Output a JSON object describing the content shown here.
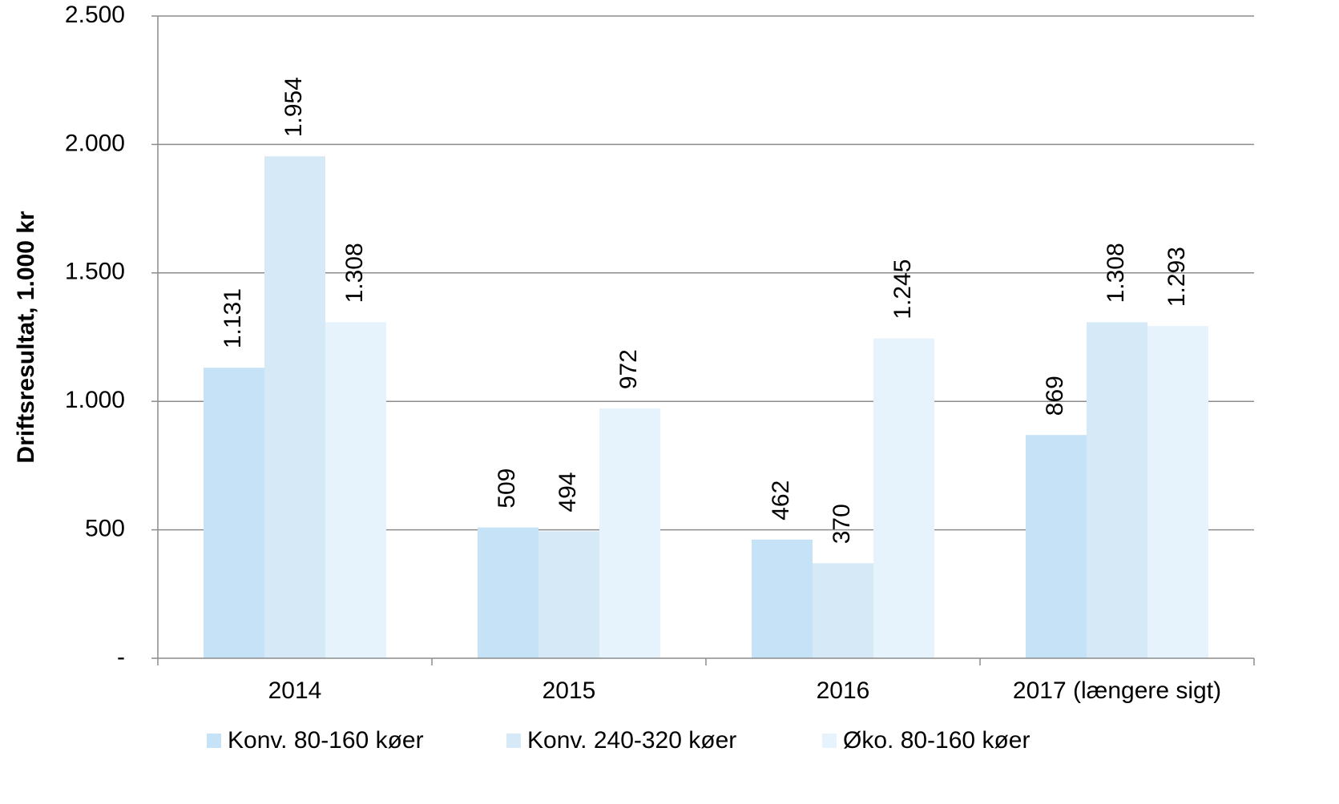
{
  "chart_data": {
    "type": "bar",
    "y_label": "Driftsresultat, 1.000 kr",
    "categories": [
      "2014",
      "2015",
      "2016",
      "2017 (længere sigt)"
    ],
    "series": [
      {
        "name": "Konv. 80-160 køer",
        "color": "#c5e2f7",
        "values": [
          1131,
          509,
          462,
          869
        ],
        "value_labels": [
          "1.131",
          "509",
          "462",
          "869"
        ]
      },
      {
        "name": "Konv. 240-320 køer",
        "color": "#d5e9f7",
        "values": [
          1954,
          494,
          370,
          1308
        ],
        "value_labels": [
          "1.954",
          "494",
          "370",
          "1.308"
        ]
      },
      {
        "name": "Øko. 80-160 køer",
        "color": "#e6f2fc",
        "values": [
          1308,
          972,
          1245,
          1293
        ],
        "value_labels": [
          "1.308",
          "972",
          "1.245",
          "1.293"
        ]
      }
    ],
    "ylim": [
      0,
      2500
    ],
    "yticks": [
      {
        "value": 0,
        "label": "-"
      },
      500,
      {
        "value": 1000,
        "label": "1.000"
      },
      {
        "value": 1500,
        "label": "1.500"
      },
      {
        "value": 2000,
        "label": "2.000"
      },
      {
        "value": 2500,
        "label": "2.500"
      }
    ],
    "grid": true
  }
}
